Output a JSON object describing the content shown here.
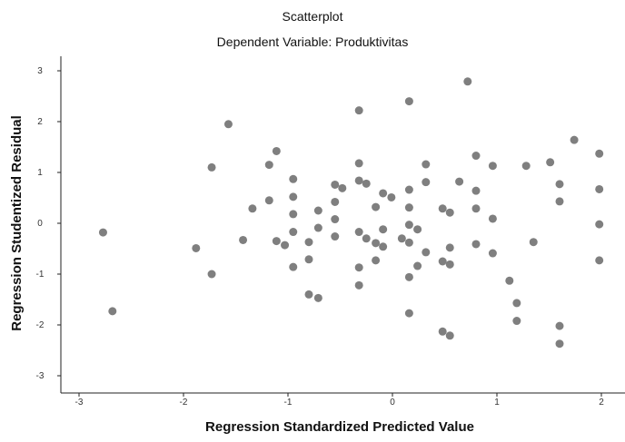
{
  "chart_data": {
    "type": "scatter",
    "title": "Scatterplot",
    "subtitle": "Dependent Variable: Produktivitas",
    "xlabel": "Regression Standardized Predicted Value",
    "ylabel": "Regression Studentized Residual",
    "xlim": [
      -3.3,
      2.2
    ],
    "ylim": [
      -3.3,
      3.3
    ],
    "xticks": [
      -3,
      -2,
      -1,
      0,
      1,
      2
    ],
    "yticks": [
      -3,
      -2,
      -1,
      0,
      1,
      2,
      3
    ],
    "grid": false,
    "marker_color": "#7f7f7f",
    "points": [
      {
        "x": -2.77,
        "y": -0.18
      },
      {
        "x": -2.68,
        "y": -1.73
      },
      {
        "x": -1.88,
        "y": -0.49
      },
      {
        "x": -1.73,
        "y": 1.1
      },
      {
        "x": -1.73,
        "y": -1.0
      },
      {
        "x": -1.57,
        "y": 1.95
      },
      {
        "x": -1.43,
        "y": -0.33
      },
      {
        "x": -1.34,
        "y": 0.29
      },
      {
        "x": -1.18,
        "y": 1.15
      },
      {
        "x": -1.18,
        "y": 0.45
      },
      {
        "x": -1.11,
        "y": 1.42
      },
      {
        "x": -1.11,
        "y": -0.35
      },
      {
        "x": -1.03,
        "y": -0.43
      },
      {
        "x": -0.95,
        "y": 0.87
      },
      {
        "x": -0.95,
        "y": 0.52
      },
      {
        "x": -0.95,
        "y": 0.18
      },
      {
        "x": -0.95,
        "y": -0.17
      },
      {
        "x": -0.95,
        "y": -0.86
      },
      {
        "x": -0.8,
        "y": -0.37
      },
      {
        "x": -0.8,
        "y": -0.71
      },
      {
        "x": -0.8,
        "y": -1.4
      },
      {
        "x": -0.71,
        "y": 0.25
      },
      {
        "x": -0.71,
        "y": -0.09
      },
      {
        "x": -0.71,
        "y": -1.47
      },
      {
        "x": -0.55,
        "y": 0.76
      },
      {
        "x": -0.55,
        "y": 0.42
      },
      {
        "x": -0.55,
        "y": 0.08
      },
      {
        "x": -0.55,
        "y": -0.26
      },
      {
        "x": -0.48,
        "y": 0.69
      },
      {
        "x": -0.32,
        "y": 2.22
      },
      {
        "x": -0.32,
        "y": 1.18
      },
      {
        "x": -0.32,
        "y": 0.84
      },
      {
        "x": -0.32,
        "y": -0.17
      },
      {
        "x": -0.32,
        "y": -0.87
      },
      {
        "x": -0.32,
        "y": -1.22
      },
      {
        "x": -0.25,
        "y": 0.78
      },
      {
        "x": -0.25,
        "y": -0.3
      },
      {
        "x": -0.16,
        "y": 0.32
      },
      {
        "x": -0.16,
        "y": -0.39
      },
      {
        "x": -0.16,
        "y": -0.73
      },
      {
        "x": -0.09,
        "y": 0.59
      },
      {
        "x": -0.09,
        "y": -0.12
      },
      {
        "x": -0.09,
        "y": -0.46
      },
      {
        "x": -0.01,
        "y": 0.51
      },
      {
        "x": 0.09,
        "y": -0.3
      },
      {
        "x": 0.16,
        "y": 2.4
      },
      {
        "x": 0.16,
        "y": 0.66
      },
      {
        "x": 0.16,
        "y": 0.31
      },
      {
        "x": 0.16,
        "y": -0.03
      },
      {
        "x": 0.16,
        "y": -0.38
      },
      {
        "x": 0.16,
        "y": -1.06
      },
      {
        "x": 0.16,
        "y": -1.77
      },
      {
        "x": 0.24,
        "y": -0.12
      },
      {
        "x": 0.24,
        "y": -0.84
      },
      {
        "x": 0.32,
        "y": 1.16
      },
      {
        "x": 0.32,
        "y": 0.81
      },
      {
        "x": 0.32,
        "y": -0.57
      },
      {
        "x": 0.48,
        "y": 0.29
      },
      {
        "x": 0.48,
        "y": -0.75
      },
      {
        "x": 0.48,
        "y": -2.13
      },
      {
        "x": 0.55,
        "y": 0.21
      },
      {
        "x": 0.55,
        "y": -0.48
      },
      {
        "x": 0.55,
        "y": -0.81
      },
      {
        "x": 0.55,
        "y": -2.21
      },
      {
        "x": 0.64,
        "y": 0.82
      },
      {
        "x": 0.72,
        "y": 2.79
      },
      {
        "x": 0.8,
        "y": 1.33
      },
      {
        "x": 0.8,
        "y": 0.64
      },
      {
        "x": 0.8,
        "y": 0.29
      },
      {
        "x": 0.8,
        "y": -0.41
      },
      {
        "x": 0.96,
        "y": 1.13
      },
      {
        "x": 0.96,
        "y": 0.09
      },
      {
        "x": 0.96,
        "y": -0.59
      },
      {
        "x": 1.12,
        "y": -1.13
      },
      {
        "x": 1.19,
        "y": -1.57
      },
      {
        "x": 1.19,
        "y": -1.92
      },
      {
        "x": 1.28,
        "y": 1.13
      },
      {
        "x": 1.35,
        "y": -0.37
      },
      {
        "x": 1.51,
        "y": 1.2
      },
      {
        "x": 1.6,
        "y": 0.77
      },
      {
        "x": 1.6,
        "y": 0.43
      },
      {
        "x": 1.6,
        "y": -2.02
      },
      {
        "x": 1.6,
        "y": -2.37
      },
      {
        "x": 1.74,
        "y": 1.64
      },
      {
        "x": 1.98,
        "y": 1.37
      },
      {
        "x": 1.98,
        "y": 0.67
      },
      {
        "x": 1.98,
        "y": -0.02
      },
      {
        "x": 1.98,
        "y": -0.73
      }
    ]
  }
}
